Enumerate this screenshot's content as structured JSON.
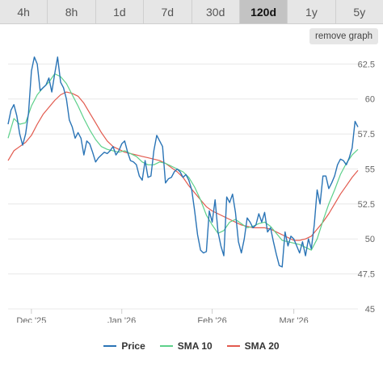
{
  "tabs": [
    {
      "label": "4h",
      "active": false
    },
    {
      "label": "8h",
      "active": false
    },
    {
      "label": "1d",
      "active": false
    },
    {
      "label": "7d",
      "active": false
    },
    {
      "label": "30d",
      "active": false
    },
    {
      "label": "120d",
      "active": true
    },
    {
      "label": "1y",
      "active": false
    },
    {
      "label": "5y",
      "active": false
    }
  ],
  "remove_graph_label": "remove graph",
  "colors": {
    "price": "#2a74b6",
    "sma10": "#5cd08a",
    "sma20": "#e25a4e",
    "grid": "#e8e8e8"
  },
  "chart_data": {
    "type": "line",
    "ylim": [
      45,
      63.5
    ],
    "yticks": [
      45,
      47.5,
      50,
      52.5,
      55,
      57.5,
      60,
      62.5
    ],
    "ytick_labels": [
      "45",
      "47.5",
      "50",
      "52.5",
      "55",
      "57.5",
      "60",
      "62.5"
    ],
    "xlim": [
      0,
      120
    ],
    "xticks": [
      {
        "x": 8,
        "label": "Dec '25"
      },
      {
        "x": 39,
        "label": "Jan '26"
      },
      {
        "x": 70,
        "label": "Feb '26"
      },
      {
        "x": 98,
        "label": "Mar '26"
      }
    ],
    "legend_position": "bottom-center",
    "series": [
      {
        "name": "Price",
        "key": "price",
        "points": [
          [
            0,
            58.2
          ],
          [
            1,
            59.2
          ],
          [
            2,
            59.6
          ],
          [
            3,
            58.8
          ],
          [
            4,
            57.5
          ],
          [
            5,
            56.7
          ],
          [
            6,
            57.5
          ],
          [
            7,
            59.0
          ],
          [
            8,
            62.0
          ],
          [
            9,
            63.0
          ],
          [
            10,
            62.5
          ],
          [
            11,
            60.6
          ],
          [
            12,
            60.8
          ],
          [
            13,
            61.0
          ],
          [
            14,
            61.5
          ],
          [
            15,
            60.5
          ],
          [
            16,
            61.8
          ],
          [
            17,
            63.0
          ],
          [
            18,
            61.2
          ],
          [
            19,
            60.8
          ],
          [
            20,
            60.0
          ],
          [
            21,
            58.5
          ],
          [
            22,
            58.0
          ],
          [
            23,
            57.2
          ],
          [
            24,
            57.6
          ],
          [
            25,
            57.2
          ],
          [
            26,
            56.0
          ],
          [
            27,
            57.0
          ],
          [
            28,
            56.8
          ],
          [
            29,
            56.2
          ],
          [
            30,
            55.5
          ],
          [
            31,
            55.8
          ],
          [
            32,
            56.0
          ],
          [
            33,
            56.2
          ],
          [
            34,
            56.1
          ],
          [
            35,
            56.3
          ],
          [
            36,
            56.6
          ],
          [
            37,
            56.0
          ],
          [
            38,
            56.3
          ],
          [
            39,
            56.8
          ],
          [
            40,
            57.0
          ],
          [
            41,
            56.2
          ],
          [
            42,
            55.6
          ],
          [
            43,
            55.5
          ],
          [
            44,
            55.3
          ],
          [
            45,
            54.5
          ],
          [
            46,
            54.2
          ],
          [
            47,
            55.6
          ],
          [
            48,
            54.4
          ],
          [
            49,
            54.5
          ],
          [
            50,
            56.3
          ],
          [
            51,
            57.4
          ],
          [
            52,
            57.0
          ],
          [
            53,
            56.6
          ],
          [
            54,
            54.0
          ],
          [
            55,
            54.3
          ],
          [
            56,
            54.4
          ],
          [
            57,
            54.8
          ],
          [
            58,
            55.0
          ],
          [
            59,
            54.8
          ],
          [
            60,
            54.4
          ],
          [
            61,
            54.6
          ],
          [
            62,
            54.2
          ],
          [
            63,
            53.5
          ],
          [
            64,
            52.0
          ],
          [
            65,
            50.3
          ],
          [
            66,
            49.2
          ],
          [
            67,
            49.0
          ],
          [
            68,
            49.1
          ],
          [
            69,
            52.0
          ],
          [
            70,
            51.2
          ],
          [
            71,
            52.8
          ],
          [
            72,
            50.5
          ],
          [
            73,
            49.5
          ],
          [
            74,
            48.8
          ],
          [
            75,
            53.0
          ],
          [
            76,
            52.6
          ],
          [
            77,
            53.2
          ],
          [
            78,
            51.9
          ],
          [
            79,
            49.8
          ],
          [
            80,
            49.0
          ],
          [
            81,
            50.0
          ],
          [
            82,
            51.5
          ],
          [
            83,
            51.2
          ],
          [
            84,
            50.8
          ],
          [
            85,
            51.0
          ],
          [
            86,
            51.8
          ],
          [
            87,
            51.2
          ],
          [
            88,
            51.9
          ],
          [
            89,
            50.5
          ],
          [
            90,
            50.8
          ],
          [
            91,
            49.8
          ],
          [
            92,
            48.9
          ],
          [
            93,
            48.1
          ],
          [
            94,
            48.0
          ],
          [
            95,
            50.5
          ],
          [
            96,
            49.5
          ],
          [
            97,
            50.2
          ],
          [
            98,
            50.0
          ],
          [
            99,
            49.5
          ],
          [
            100,
            49.0
          ],
          [
            101,
            49.8
          ],
          [
            102,
            48.8
          ],
          [
            103,
            50.0
          ],
          [
            104,
            49.3
          ],
          [
            105,
            51.0
          ],
          [
            106,
            53.5
          ],
          [
            107,
            52.5
          ],
          [
            108,
            54.5
          ],
          [
            109,
            54.5
          ],
          [
            110,
            53.6
          ],
          [
            111,
            54.0
          ],
          [
            112,
            54.5
          ],
          [
            113,
            55.3
          ],
          [
            114,
            55.7
          ],
          [
            115,
            55.6
          ],
          [
            116,
            55.3
          ],
          [
            117,
            55.8
          ],
          [
            118,
            56.5
          ],
          [
            119,
            58.4
          ],
          [
            120,
            58.0
          ]
        ]
      },
      {
        "name": "SMA 10",
        "key": "sma10",
        "points": [
          [
            0,
            57.2
          ],
          [
            2,
            58.6
          ],
          [
            4,
            58.2
          ],
          [
            6,
            58.3
          ],
          [
            8,
            59.5
          ],
          [
            10,
            60.3
          ],
          [
            12,
            60.8
          ],
          [
            14,
            61.2
          ],
          [
            16,
            61.8
          ],
          [
            18,
            61.6
          ],
          [
            20,
            61.1
          ],
          [
            22,
            60.3
          ],
          [
            24,
            59.5
          ],
          [
            26,
            58.6
          ],
          [
            28,
            57.8
          ],
          [
            30,
            57.1
          ],
          [
            32,
            56.6
          ],
          [
            34,
            56.4
          ],
          [
            36,
            56.3
          ],
          [
            38,
            56.2
          ],
          [
            40,
            56.3
          ],
          [
            42,
            56.1
          ],
          [
            44,
            55.9
          ],
          [
            46,
            55.5
          ],
          [
            48,
            55.3
          ],
          [
            50,
            55.3
          ],
          [
            52,
            55.5
          ],
          [
            54,
            55.4
          ],
          [
            56,
            55.2
          ],
          [
            58,
            55.0
          ],
          [
            60,
            54.8
          ],
          [
            62,
            54.4
          ],
          [
            64,
            53.7
          ],
          [
            66,
            52.8
          ],
          [
            68,
            51.7
          ],
          [
            70,
            51.0
          ],
          [
            72,
            50.4
          ],
          [
            74,
            50.6
          ],
          [
            76,
            51.2
          ],
          [
            78,
            51.4
          ],
          [
            80,
            51.1
          ],
          [
            82,
            50.8
          ],
          [
            84,
            50.9
          ],
          [
            86,
            51.1
          ],
          [
            88,
            51.2
          ],
          [
            90,
            50.9
          ],
          [
            92,
            50.4
          ],
          [
            94,
            49.9
          ],
          [
            96,
            49.8
          ],
          [
            98,
            49.7
          ],
          [
            100,
            49.6
          ],
          [
            102,
            49.4
          ],
          [
            104,
            49.2
          ],
          [
            106,
            50.0
          ],
          [
            108,
            51.3
          ],
          [
            110,
            52.5
          ],
          [
            112,
            53.5
          ],
          [
            114,
            54.6
          ],
          [
            116,
            55.4
          ],
          [
            118,
            56.0
          ],
          [
            120,
            56.4
          ]
        ]
      },
      {
        "name": "SMA 20",
        "key": "sma20",
        "points": [
          [
            0,
            55.6
          ],
          [
            2,
            56.3
          ],
          [
            4,
            56.6
          ],
          [
            6,
            56.9
          ],
          [
            8,
            57.4
          ],
          [
            10,
            58.2
          ],
          [
            12,
            58.9
          ],
          [
            14,
            59.4
          ],
          [
            16,
            59.9
          ],
          [
            18,
            60.3
          ],
          [
            20,
            60.5
          ],
          [
            22,
            60.4
          ],
          [
            24,
            60.2
          ],
          [
            26,
            59.7
          ],
          [
            28,
            59.0
          ],
          [
            30,
            58.3
          ],
          [
            32,
            57.6
          ],
          [
            34,
            57.0
          ],
          [
            36,
            56.6
          ],
          [
            38,
            56.4
          ],
          [
            40,
            56.2
          ],
          [
            42,
            56.1
          ],
          [
            44,
            56.0
          ],
          [
            46,
            55.9
          ],
          [
            48,
            55.8
          ],
          [
            50,
            55.7
          ],
          [
            52,
            55.6
          ],
          [
            54,
            55.4
          ],
          [
            56,
            55.1
          ],
          [
            58,
            54.8
          ],
          [
            60,
            54.4
          ],
          [
            62,
            53.8
          ],
          [
            64,
            53.3
          ],
          [
            66,
            52.8
          ],
          [
            68,
            52.3
          ],
          [
            70,
            52.0
          ],
          [
            72,
            51.8
          ],
          [
            74,
            51.6
          ],
          [
            76,
            51.4
          ],
          [
            78,
            51.2
          ],
          [
            80,
            51.0
          ],
          [
            82,
            50.9
          ],
          [
            84,
            50.8
          ],
          [
            86,
            50.8
          ],
          [
            88,
            50.8
          ],
          [
            90,
            50.7
          ],
          [
            92,
            50.5
          ],
          [
            94,
            50.3
          ],
          [
            96,
            50.1
          ],
          [
            98,
            49.9
          ],
          [
            100,
            49.9
          ],
          [
            102,
            50.0
          ],
          [
            104,
            50.2
          ],
          [
            106,
            50.7
          ],
          [
            108,
            51.2
          ],
          [
            110,
            51.8
          ],
          [
            112,
            52.5
          ],
          [
            114,
            53.2
          ],
          [
            116,
            53.8
          ],
          [
            118,
            54.4
          ],
          [
            120,
            54.9
          ]
        ]
      }
    ]
  }
}
